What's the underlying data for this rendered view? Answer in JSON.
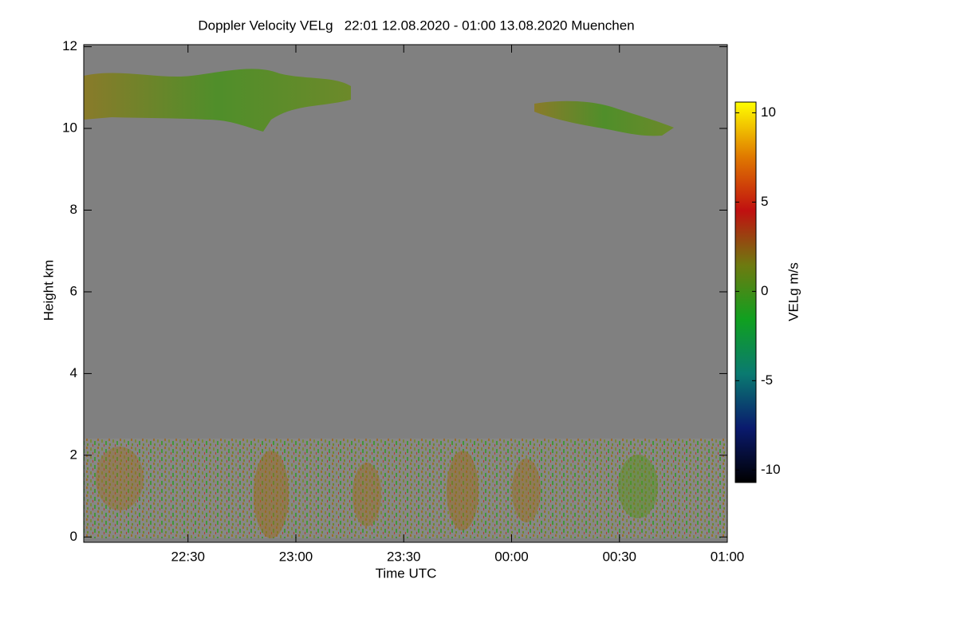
{
  "chart_data": {
    "type": "heatmap",
    "title": "Doppler Velocity VELg   22:01 12.08.2020 - 01:00 13.08.2020 Muenchen",
    "x_label": "Time UTC",
    "y_label": "Height km",
    "xlim": [
      1,
      180
    ],
    "xticks": [
      {
        "value": 30,
        "label": "22:30"
      },
      {
        "value": 60,
        "label": "23:00"
      },
      {
        "value": 90,
        "label": "23:30"
      },
      {
        "value": 120,
        "label": "00:00"
      },
      {
        "value": 150,
        "label": "00:30"
      },
      {
        "value": 180,
        "label": "01:00"
      }
    ],
    "ylim": [
      -0.13,
      12.05
    ],
    "yticks": [
      0,
      2,
      4,
      6,
      8,
      10,
      12
    ],
    "colorbar": {
      "label": "VELg m/s",
      "lim": [
        -10.7,
        10.6
      ],
      "ticks": [
        -10,
        -5,
        0,
        5,
        10
      ],
      "colors": [
        "#000000",
        "#0a1a6e",
        "#0a7a70",
        "#10a020",
        "#6e7a10",
        "#c01010",
        "#e07a00",
        "#ffff00"
      ]
    }
  }
}
